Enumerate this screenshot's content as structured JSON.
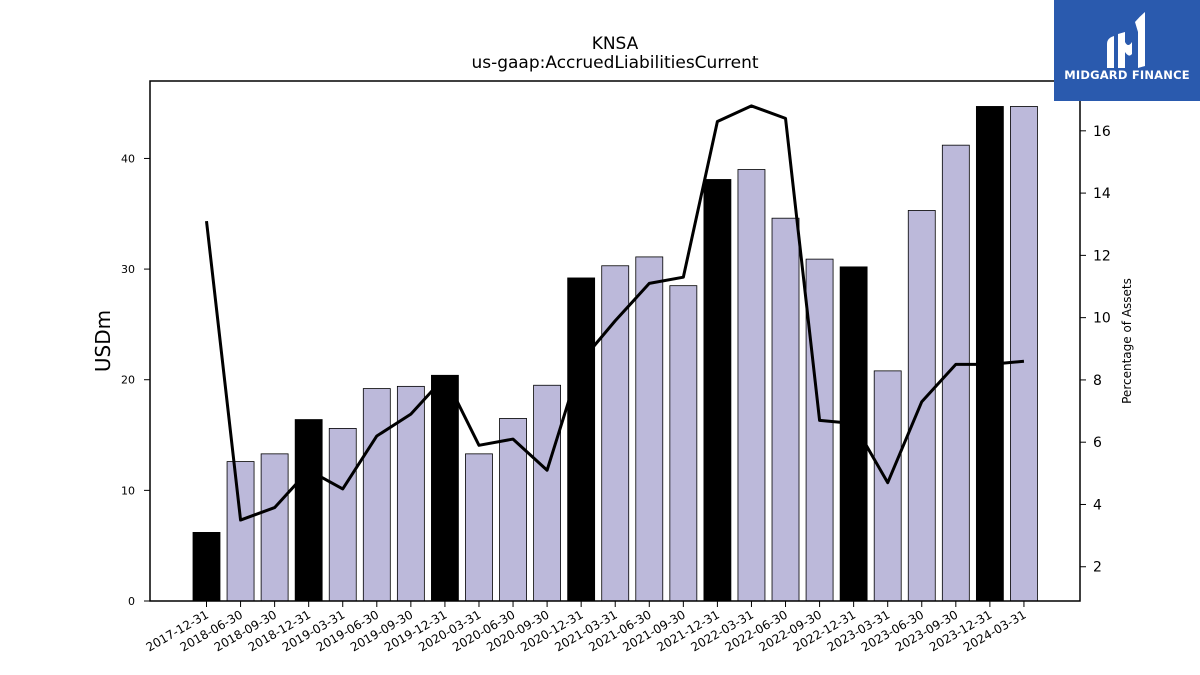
{
  "logo": {
    "text": "MIDGARD FINANCE",
    "color": "#2a5aae"
  },
  "chart_data": {
    "type": "bar",
    "title": "KNSA",
    "subtitle": "us-gaap:AccruedLiabilitiesCurrent",
    "ylabel": "USDm",
    "y2label": "Percentage of Assets",
    "ylim": [
      0,
      47
    ],
    "y2lim": [
      0.9,
      17.6
    ],
    "yticks": [
      0,
      10,
      20,
      30,
      40
    ],
    "y2ticks": [
      2,
      4,
      6,
      8,
      10,
      12,
      14,
      16
    ],
    "categories": [
      "2017-12-31",
      "2018-06-30",
      "2018-09-30",
      "2018-12-31",
      "2019-03-31",
      "2019-06-30",
      "2019-09-30",
      "2019-12-31",
      "2020-03-31",
      "2020-06-30",
      "2020-09-30",
      "2020-12-31",
      "2021-03-31",
      "2021-06-30",
      "2021-09-30",
      "2021-12-31",
      "2022-03-31",
      "2022-06-30",
      "2022-09-30",
      "2022-12-31",
      "2023-03-31",
      "2023-06-30",
      "2023-09-30",
      "2023-12-31",
      "2024-03-31"
    ],
    "series": [
      {
        "name": "",
        "type": "bar",
        "values": [
          6.2,
          12.6,
          13.3,
          16.4,
          15.6,
          19.2,
          19.4,
          20.4,
          13.3,
          16.5,
          19.5,
          29.2,
          30.3,
          31.1,
          28.5,
          38.1,
          39.0,
          34.6,
          30.9,
          30.2,
          20.8,
          35.3,
          41.2,
          44.7,
          44.7
        ]
      },
      {
        "name": "",
        "type": "line",
        "axis": "right",
        "values": [
          13.1,
          3.5,
          3.9,
          5.1,
          4.5,
          6.2,
          6.9,
          8.1,
          5.9,
          6.1,
          5.1,
          8.6,
          9.9,
          11.1,
          11.3,
          16.3,
          16.8,
          16.4,
          6.7,
          6.6,
          4.7,
          7.3,
          8.5,
          8.5,
          8.6
        ]
      }
    ],
    "highlight": [
      true,
      false,
      false,
      true,
      false,
      false,
      false,
      true,
      false,
      false,
      false,
      true,
      false,
      false,
      false,
      true,
      false,
      false,
      false,
      true,
      false,
      false,
      false,
      true,
      false
    ],
    "colors": {
      "bar": "#bcb9da",
      "bar_highlight": "#000000",
      "line": "#000000"
    },
    "grid": false,
    "legend": "none"
  }
}
